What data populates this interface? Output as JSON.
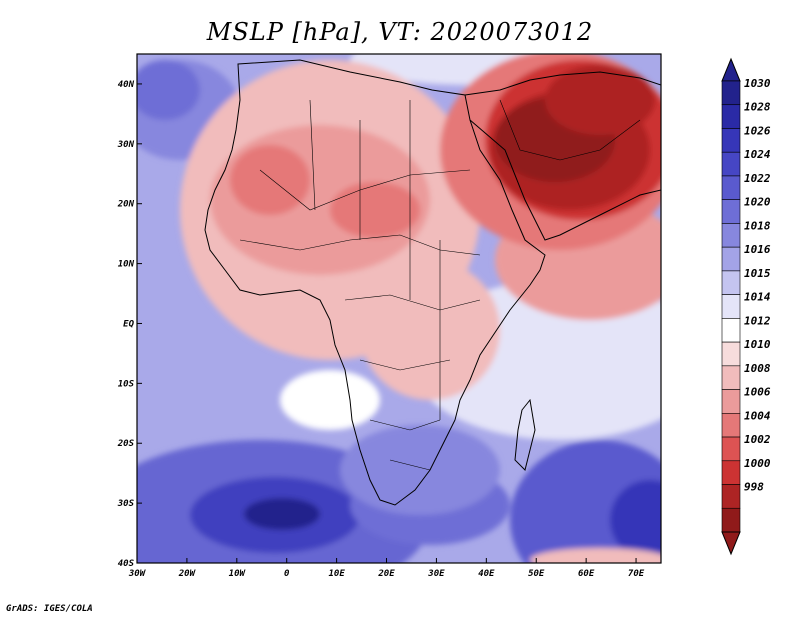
{
  "title": "MSLP [hPa], VT: 2020073012",
  "credit": "GrADS: IGES/COLA",
  "map": {
    "variable": "MSLP",
    "units": "hPa",
    "valid_time": "2020073012",
    "lon_range": [
      -30,
      75
    ],
    "lat_range": [
      -40,
      45
    ],
    "lon_ticks": [
      -30,
      -20,
      -10,
      0,
      10,
      20,
      30,
      40,
      50,
      60,
      70
    ],
    "lon_tick_labels": [
      "30W",
      "20W",
      "10W",
      "0",
      "10E",
      "20E",
      "30E",
      "40E",
      "50E",
      "60E",
      "70E"
    ],
    "lat_ticks": [
      40,
      30,
      20,
      10,
      0,
      -10,
      -20,
      -30,
      -40
    ],
    "lat_tick_labels": [
      "40N",
      "30N",
      "20N",
      "10N",
      "EQ",
      "10S",
      "20S",
      "30S",
      "40S"
    ],
    "pressure_features": [
      {
        "type": "low",
        "lon": 48,
        "lat": 29,
        "value": 998
      },
      {
        "type": "low",
        "lon": 5,
        "lat": 18,
        "value": 1005
      },
      {
        "type": "low",
        "lon": 43,
        "lat": 21,
        "value": 1000
      },
      {
        "type": "high",
        "lon": -3,
        "lat": -31,
        "value": 1030
      },
      {
        "type": "high",
        "lon": 74,
        "lat": -32,
        "value": 1024
      },
      {
        "type": "high",
        "lon": -29,
        "lat": 30,
        "value": 1022
      },
      {
        "type": "high",
        "lon": 30,
        "lat": -28,
        "value": 1020
      }
    ]
  },
  "colorbar": {
    "levels": [
      "1030",
      "1028",
      "1026",
      "1024",
      "1022",
      "1020",
      "1018",
      "1016",
      "1015",
      "1014",
      "1012",
      "1010",
      "1008",
      "1006",
      "1004",
      "1002",
      "1000",
      "998"
    ],
    "colors": [
      "#22228c",
      "#2a2aa6",
      "#3636b8",
      "#4646c4",
      "#5a5ace",
      "#6e6ed6",
      "#8787de",
      "#a3a3e7",
      "#c4c4f0",
      "#e4e4f8",
      "#ffffff",
      "#f7dcdc",
      "#f1bcbc",
      "#eb9b9b",
      "#e57878",
      "#dd5353",
      "#cc3333",
      "#ad2424",
      "#901a1a"
    ]
  }
}
